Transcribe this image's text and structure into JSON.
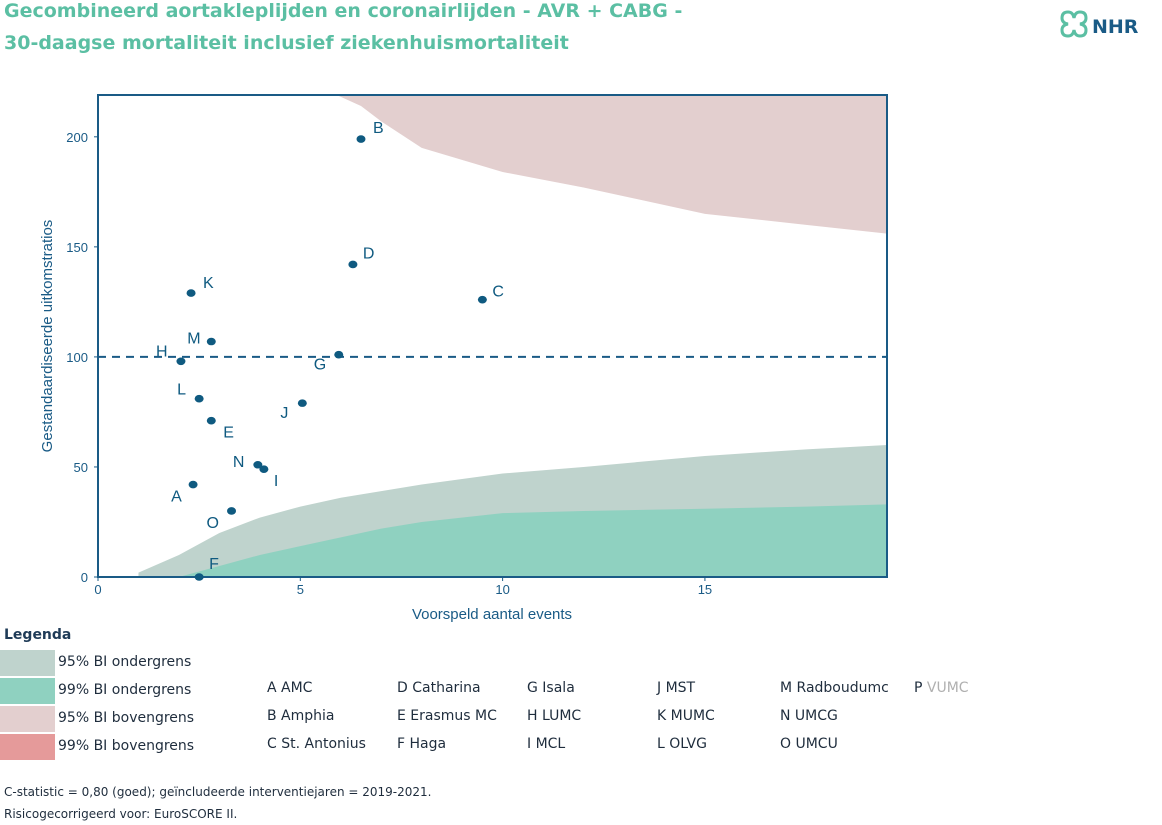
{
  "title_line1": "Gecombineerd aortakleplijden en coronairlijden - AVR + CABG -",
  "title_line2": "30-daagse mortaliteit inclusief ziekenhuismortaliteit",
  "logo_text": "NHR",
  "colors": {
    "title": "#5bbfa3",
    "axis": "#1a5b86",
    "point": "#0f5a80",
    "ci95_lower": "#bfd3cd",
    "ci99_lower": "#8fd1c0",
    "ci95_upper": "#e3cfcf",
    "ci99_upper": "#e59a9a"
  },
  "chart_data": {
    "type": "scatter",
    "xlabel": "Voorspeld aantal events",
    "ylabel": "Gestandaardiseerde uitkomstratios",
    "xlim": [
      0,
      19.5
    ],
    "ylim": [
      0,
      219
    ],
    "xticks": [
      0,
      5,
      10,
      15
    ],
    "yticks": [
      0,
      50,
      100,
      150,
      200
    ],
    "reference_line": 100,
    "points": [
      {
        "label": "A",
        "x": 2.35,
        "y": 42
      },
      {
        "label": "B",
        "x": 6.5,
        "y": 199
      },
      {
        "label": "C",
        "x": 9.5,
        "y": 126
      },
      {
        "label": "D",
        "x": 6.3,
        "y": 142
      },
      {
        "label": "E",
        "x": 2.8,
        "y": 71
      },
      {
        "label": "F",
        "x": 2.5,
        "y": 0
      },
      {
        "label": "G",
        "x": 5.95,
        "y": 101
      },
      {
        "label": "H",
        "x": 2.05,
        "y": 98
      },
      {
        "label": "I",
        "x": 4.1,
        "y": 49
      },
      {
        "label": "J",
        "x": 5.05,
        "y": 79
      },
      {
        "label": "K",
        "x": 2.3,
        "y": 129
      },
      {
        "label": "L",
        "x": 2.5,
        "y": 81
      },
      {
        "label": "M",
        "x": 2.8,
        "y": 107
      },
      {
        "label": "N",
        "x": 3.95,
        "y": 51
      },
      {
        "label": "O",
        "x": 3.3,
        "y": 30
      }
    ],
    "bands": {
      "ci95_lower": [
        [
          1,
          2
        ],
        [
          2,
          10
        ],
        [
          3,
          20
        ],
        [
          4,
          27
        ],
        [
          5,
          32
        ],
        [
          6,
          36
        ],
        [
          7,
          39
        ],
        [
          8,
          42
        ],
        [
          10,
          47
        ],
        [
          12,
          50
        ],
        [
          15,
          55
        ],
        [
          17.5,
          58
        ],
        [
          19.5,
          60
        ]
      ],
      "ci99_lower": [
        [
          2,
          0
        ],
        [
          3,
          5
        ],
        [
          4,
          10
        ],
        [
          5,
          14
        ],
        [
          6,
          18
        ],
        [
          7,
          22
        ],
        [
          8,
          25
        ],
        [
          10,
          29
        ],
        [
          12,
          30
        ],
        [
          15,
          31
        ],
        [
          17.5,
          32
        ],
        [
          19.5,
          33
        ]
      ],
      "ci95_upper": [
        [
          5.9,
          219
        ],
        [
          6.5,
          214
        ],
        [
          7,
          207
        ],
        [
          8,
          195
        ],
        [
          10,
          184
        ],
        [
          12,
          177
        ],
        [
          15,
          165
        ],
        [
          17.5,
          160
        ],
        [
          19.5,
          156
        ]
      ]
    }
  },
  "legend": {
    "title": "Legenda",
    "items": [
      {
        "label": "95% BI ondergrens",
        "color": "#bfd3cd"
      },
      {
        "label": "99% BI ondergrens",
        "color": "#8fd1c0"
      },
      {
        "label": "95% BI bovengrens",
        "color": "#e3cfcf"
      },
      {
        "label": "99% BI bovengrens",
        "color": "#e59a9a"
      }
    ]
  },
  "hospitals": [
    [
      "A AMC",
      "B Amphia",
      "C St. Antonius"
    ],
    [
      "D Catharina",
      "E Erasmus MC",
      "F Haga"
    ],
    [
      "G Isala",
      "H LUMC",
      "I MCL"
    ],
    [
      "J MST",
      "K MUMC",
      "L OLVG"
    ],
    [
      "M Radboudumc",
      "N UMCG",
      "O UMCU"
    ]
  ],
  "hospital_extra": {
    "letter": "P",
    "name": "VUMC"
  },
  "footnote1": "C-statistic = 0,80 (goed); geïncludeerde interventiejaren = 2019-2021.",
  "footnote2": "Risicogecorrigeerd voor:  EuroSCORE II."
}
